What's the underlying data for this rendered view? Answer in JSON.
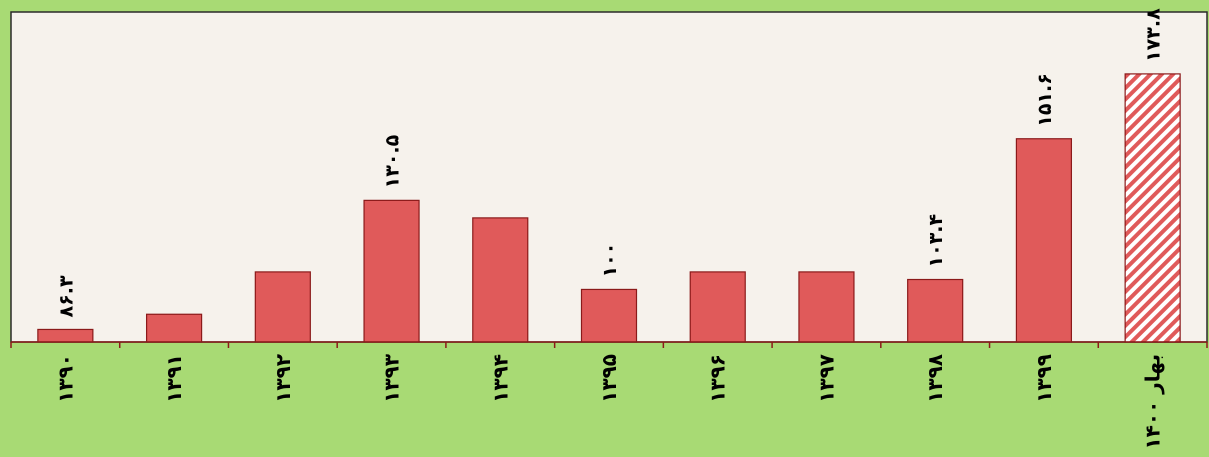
{
  "chart_data": {
    "type": "bar",
    "categories": [
      "۱۳۹۰",
      "۱۳۹۱",
      "۱۳۹۲",
      "۱۳۹۳",
      "۱۳۹۴",
      "۱۳۹۵",
      "۱۳۹۶",
      "۱۳۹۷",
      "۱۳۹۸",
      "۱۳۹۹",
      "بهار ۱۴۰۰"
    ],
    "values": [
      86.3,
      91.5,
      106,
      130.5,
      124.5,
      100,
      106,
      106,
      103.4,
      151.6,
      173.8
    ],
    "data_labels": [
      "۸۶.۳",
      "",
      "",
      "۱۳۰.۵",
      "",
      "۱۰۰",
      "",
      "",
      "۱۰۳.۴",
      "۱۵۱.۶",
      "۱۷۳.۸"
    ],
    "hatched": [
      false,
      false,
      false,
      false,
      false,
      false,
      false,
      false,
      false,
      false,
      true
    ],
    "title": "",
    "xlabel": "",
    "ylabel": "",
    "ylim": [
      82,
      195
    ],
    "grid": false,
    "legend": "none",
    "colors": {
      "bar_fill": "#e05a5a",
      "bar_edge": "#8b1a1a",
      "plot_bg": "#f6f2ec",
      "outer_bg": "#a8da74",
      "axis": "#8b1a1a",
      "frame": "#2a2a2a"
    }
  }
}
